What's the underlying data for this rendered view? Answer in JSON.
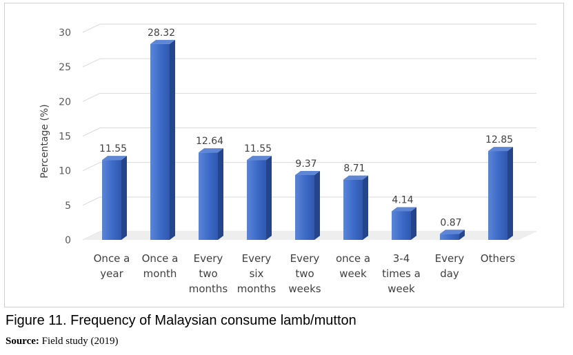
{
  "chart_data": {
    "type": "bar",
    "title": "",
    "xlabel": "",
    "ylabel": "Percentage (%)",
    "ylim": [
      0,
      30
    ],
    "yticks": [
      0,
      5,
      10,
      15,
      20,
      25,
      30
    ],
    "grid": true,
    "legend": "none",
    "bar_color": "#3a66c4",
    "categories": [
      [
        "Once a",
        "year"
      ],
      [
        "Once a",
        "month"
      ],
      [
        "Every",
        "two",
        "months"
      ],
      [
        "Every",
        "six",
        "months"
      ],
      [
        "Every",
        "two",
        "weeks"
      ],
      [
        "once a",
        "week"
      ],
      [
        "3-4",
        "times a",
        "week"
      ],
      [
        "Every",
        "day"
      ],
      [
        "Others"
      ]
    ],
    "values": [
      11.55,
      28.32,
      12.64,
      11.55,
      9.37,
      8.71,
      4.14,
      0.87,
      12.85
    ],
    "data_labels": [
      "11.55",
      "28.32",
      "12.64",
      "11.55",
      "9.37",
      "8.71",
      "4.14",
      "0.87",
      "12.85"
    ]
  },
  "caption": {
    "figure_text": "Figure 11. Frequency of Malaysian consume lamb/mutton",
    "source_label": "Source:",
    "source_text": "Field study (2019)"
  }
}
